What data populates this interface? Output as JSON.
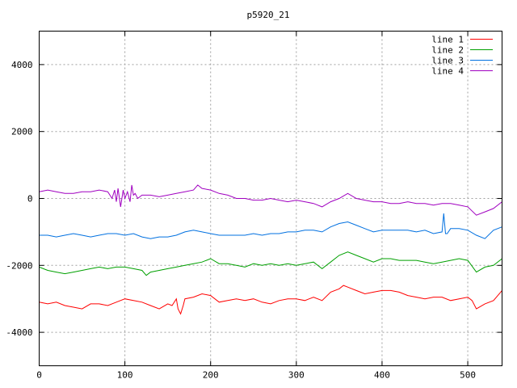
{
  "chart_data": {
    "type": "line",
    "title": "p5920_21",
    "xlabel": "",
    "ylabel": "",
    "xlim": [
      0,
      540
    ],
    "ylim": [
      -5000,
      5000
    ],
    "xticks": [
      0,
      100,
      200,
      300,
      400,
      500
    ],
    "yticks": [
      -4000,
      -2000,
      0,
      2000,
      4000
    ],
    "grid": true,
    "legend_position": "top-right",
    "series": [
      {
        "name": "line 1",
        "color": "#ff0000",
        "x": [
          0,
          10,
          20,
          30,
          40,
          50,
          60,
          70,
          80,
          90,
          100,
          110,
          120,
          130,
          140,
          150,
          155,
          160,
          162,
          165,
          168,
          170,
          180,
          190,
          200,
          210,
          220,
          230,
          240,
          250,
          260,
          270,
          280,
          290,
          300,
          310,
          320,
          330,
          340,
          350,
          355,
          360,
          370,
          380,
          390,
          400,
          410,
          420,
          430,
          440,
          450,
          460,
          470,
          480,
          490,
          500,
          505,
          510,
          520,
          530,
          540
        ],
        "values": [
          -3100,
          -3150,
          -3100,
          -3200,
          -3250,
          -3300,
          -3150,
          -3150,
          -3200,
          -3100,
          -3000,
          -3050,
          -3100,
          -3200,
          -3300,
          -3150,
          -3200,
          -3000,
          -3300,
          -3450,
          -3200,
          -3000,
          -2950,
          -2850,
          -2900,
          -3100,
          -3050,
          -3000,
          -3050,
          -3000,
          -3100,
          -3150,
          -3050,
          -3000,
          -3000,
          -3050,
          -2950,
          -3050,
          -2800,
          -2700,
          -2600,
          -2650,
          -2750,
          -2850,
          -2800,
          -2750,
          -2750,
          -2800,
          -2900,
          -2950,
          -3000,
          -2950,
          -2950,
          -3050,
          -3000,
          -2950,
          -3050,
          -3300,
          -3150,
          -3050,
          -2750
        ]
      },
      {
        "name": "line 2",
        "color": "#00a000",
        "x": [
          0,
          10,
          20,
          30,
          40,
          50,
          60,
          70,
          80,
          90,
          100,
          110,
          120,
          125,
          130,
          140,
          150,
          160,
          170,
          180,
          190,
          200,
          210,
          220,
          230,
          240,
          250,
          260,
          270,
          280,
          290,
          300,
          310,
          320,
          330,
          340,
          350,
          360,
          370,
          380,
          390,
          400,
          410,
          420,
          430,
          440,
          450,
          460,
          470,
          480,
          490,
          500,
          510,
          520,
          530,
          540
        ],
        "values": [
          -2050,
          -2150,
          -2200,
          -2250,
          -2200,
          -2150,
          -2100,
          -2050,
          -2100,
          -2050,
          -2050,
          -2100,
          -2150,
          -2300,
          -2200,
          -2150,
          -2100,
          -2050,
          -2000,
          -1950,
          -1900,
          -1800,
          -1950,
          -1950,
          -2000,
          -2050,
          -1950,
          -2000,
          -1950,
          -2000,
          -1950,
          -2000,
          -1950,
          -1900,
          -2100,
          -1900,
          -1700,
          -1600,
          -1700,
          -1800,
          -1900,
          -1800,
          -1800,
          -1850,
          -1850,
          -1850,
          -1900,
          -1950,
          -1900,
          -1850,
          -1800,
          -1850,
          -2200,
          -2050,
          -2000,
          -1800
        ]
      },
      {
        "name": "line 3",
        "color": "#0070e0",
        "x": [
          0,
          10,
          20,
          30,
          40,
          50,
          60,
          70,
          80,
          90,
          100,
          110,
          120,
          130,
          140,
          150,
          160,
          170,
          180,
          190,
          200,
          210,
          220,
          230,
          240,
          250,
          260,
          270,
          280,
          290,
          300,
          310,
          320,
          330,
          340,
          350,
          360,
          370,
          380,
          390,
          400,
          410,
          420,
          430,
          440,
          450,
          460,
          470,
          472,
          474,
          476,
          480,
          490,
          500,
          510,
          520,
          530,
          540
        ],
        "values": [
          -1100,
          -1100,
          -1150,
          -1100,
          -1050,
          -1100,
          -1150,
          -1100,
          -1050,
          -1050,
          -1100,
          -1050,
          -1150,
          -1200,
          -1150,
          -1150,
          -1100,
          -1000,
          -950,
          -1000,
          -1050,
          -1100,
          -1100,
          -1100,
          -1100,
          -1050,
          -1100,
          -1050,
          -1050,
          -1000,
          -1000,
          -950,
          -950,
          -1000,
          -850,
          -750,
          -700,
          -800,
          -900,
          -1000,
          -950,
          -950,
          -950,
          -950,
          -1000,
          -950,
          -1050,
          -1000,
          -450,
          -1050,
          -1050,
          -900,
          -900,
          -950,
          -1100,
          -1200,
          -950,
          -850
        ]
      },
      {
        "name": "line 4",
        "color": "#a000c0",
        "x": [
          0,
          10,
          20,
          30,
          40,
          50,
          60,
          70,
          80,
          85,
          88,
          90,
          92,
          95,
          98,
          100,
          103,
          106,
          108,
          110,
          112,
          115,
          120,
          130,
          140,
          150,
          160,
          170,
          180,
          185,
          190,
          200,
          210,
          220,
          230,
          240,
          250,
          260,
          270,
          280,
          290,
          300,
          310,
          320,
          330,
          340,
          350,
          360,
          370,
          380,
          390,
          400,
          410,
          420,
          430,
          440,
          450,
          460,
          470,
          480,
          490,
          500,
          510,
          520,
          530,
          540
        ],
        "values": [
          200,
          250,
          200,
          150,
          150,
          200,
          200,
          250,
          200,
          0,
          250,
          -100,
          300,
          -250,
          250,
          0,
          200,
          -100,
          400,
          100,
          150,
          0,
          100,
          100,
          50,
          100,
          150,
          200,
          250,
          400,
          300,
          250,
          150,
          100,
          0,
          0,
          -50,
          -50,
          0,
          -50,
          -100,
          -50,
          -100,
          -150,
          -250,
          -100,
          0,
          150,
          0,
          -50,
          -100,
          -100,
          -150,
          -150,
          -100,
          -150,
          -150,
          -200,
          -150,
          -150,
          -200,
          -250,
          -500,
          -400,
          -300,
          -100
        ]
      }
    ]
  }
}
